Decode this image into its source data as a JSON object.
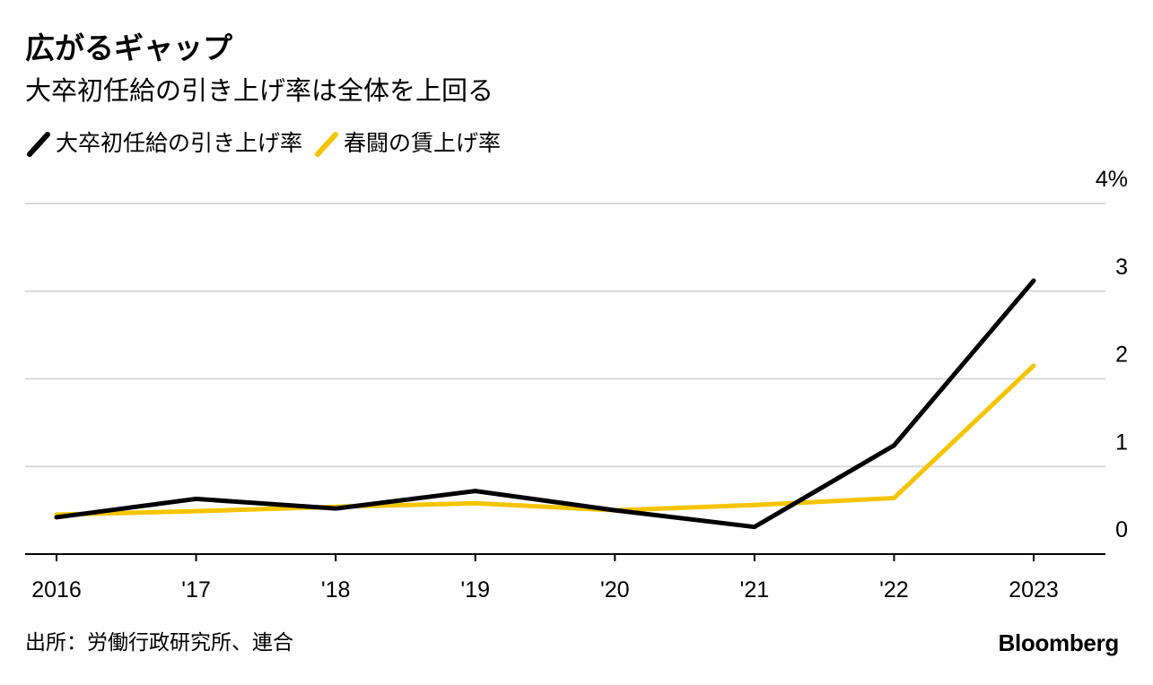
{
  "header": {
    "title": "広がるギャップ",
    "subtitle": "大卒初任給の引き上げ率は全体を上回る"
  },
  "legend": [
    {
      "label": "大卒初任給の引き上げ率",
      "color": "#000000"
    },
    {
      "label": "春闘の賃上げ率",
      "color": "#f5c400"
    }
  ],
  "chart_data": {
    "type": "line",
    "x": [
      "2016",
      "'17",
      "'18",
      "'19",
      "'20",
      "'21",
      "'22",
      "2023"
    ],
    "series": [
      {
        "name": "大卒初任給の引き上げ率",
        "color": "#000000",
        "values": [
          0.42,
          0.63,
          0.52,
          0.72,
          0.5,
          0.31,
          1.24,
          3.12
        ]
      },
      {
        "name": "春闘の賃上げ率",
        "color": "#f5c400",
        "values": [
          0.45,
          0.49,
          0.54,
          0.58,
          0.5,
          0.56,
          0.64,
          2.15
        ]
      }
    ],
    "y_ticks": [
      "0",
      "1",
      "2",
      "3",
      "4%"
    ],
    "y_tick_values": [
      0,
      1,
      2,
      3,
      4
    ],
    "ylim": [
      0,
      4
    ],
    "y_axis_position": "right",
    "grid": true,
    "gridline_color": "#d9d9d9",
    "axis_color": "#000000"
  },
  "footer": {
    "source": "出所：労働行政研究所、連合",
    "brand": "Bloomberg"
  }
}
